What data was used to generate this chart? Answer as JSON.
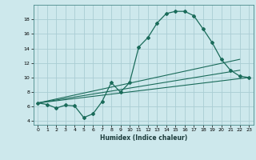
{
  "xlabel": "Humidex (Indice chaleur)",
  "bg_color": "#cde8ec",
  "grid_color": "#aacdd4",
  "line_color": "#1a6b5a",
  "xlim": [
    -0.5,
    23.5
  ],
  "ylim": [
    3.5,
    20.0
  ],
  "yticks": [
    4,
    6,
    8,
    10,
    12,
    14,
    16,
    18
  ],
  "xticks": [
    0,
    1,
    2,
    3,
    4,
    5,
    6,
    7,
    8,
    9,
    10,
    11,
    12,
    13,
    14,
    15,
    16,
    17,
    18,
    19,
    20,
    21,
    22,
    23
  ],
  "line1_x": [
    0,
    1,
    2,
    3,
    4,
    5,
    6,
    7,
    8,
    9,
    10,
    11,
    12,
    13,
    14,
    15,
    16,
    17,
    18,
    19,
    20,
    21,
    22,
    23
  ],
  "line1_y": [
    6.5,
    6.3,
    5.8,
    6.2,
    6.1,
    4.5,
    5.0,
    6.7,
    9.3,
    8.0,
    9.3,
    14.2,
    15.5,
    17.5,
    18.8,
    19.1,
    19.1,
    18.5,
    16.7,
    14.8,
    12.5,
    11.0,
    10.2,
    10.0
  ],
  "line2_x": [
    0,
    22
  ],
  "line2_y": [
    6.5,
    12.5
  ],
  "line3_x": [
    0,
    22
  ],
  "line3_y": [
    6.5,
    11.0
  ],
  "line4_x": [
    0,
    23
  ],
  "line4_y": [
    6.5,
    10.0
  ]
}
